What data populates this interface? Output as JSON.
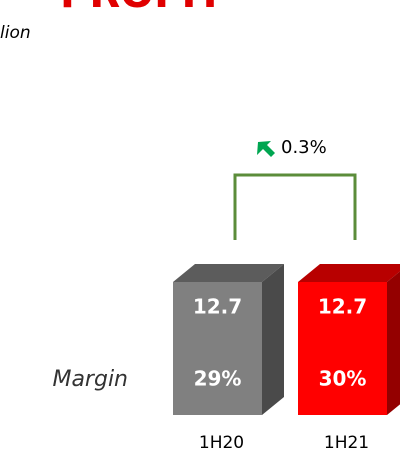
{
  "chart_data": {
    "type": "bar3d",
    "title": "PROFIT",
    "subtitle": "lion",
    "categories": [
      "1H20",
      "1H21"
    ],
    "series": [
      {
        "name": "Margin",
        "values": [
          29,
          30
        ],
        "value_labels": [
          "29%",
          "30%"
        ]
      }
    ],
    "values": [
      12.7,
      12.7
    ],
    "colors": [
      "#808080",
      "#ff0000"
    ],
    "annotation": "0.3%",
    "annotation_color": "#00a651",
    "bracket_color": "#5b8c3a"
  }
}
